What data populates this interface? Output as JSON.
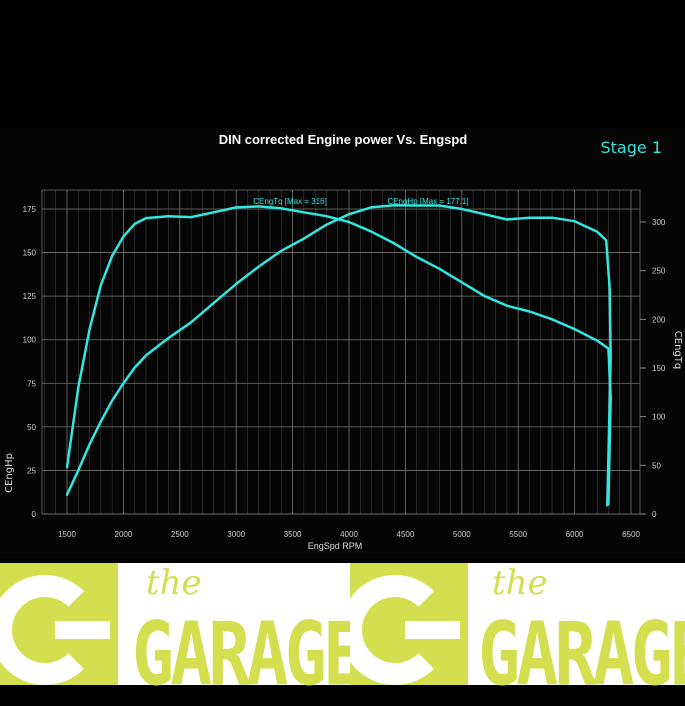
{
  "chart_data": {
    "type": "line",
    "title": "DIN corrected Engine power Vs. Engspd",
    "badge": "Stage 1",
    "xlabel": "EngSpd RPM",
    "ylabel_left": "CEngHp",
    "ylabel_right": "CEngTq",
    "xlim": [
      1250,
      6550
    ],
    "ylim_left": [
      0,
      185
    ],
    "ylim_right": [
      0,
      317
    ],
    "x_ticks": [
      1500,
      2000,
      2500,
      3000,
      3500,
      4000,
      4500,
      5000,
      5500,
      6000,
      6500
    ],
    "y_ticks_left": [
      0,
      25,
      50,
      75,
      100,
      125,
      150,
      175
    ],
    "y_ticks_right": [
      0,
      50,
      100,
      150,
      200,
      250,
      300
    ],
    "grid": true,
    "line_color": "#33e6e0",
    "series": [
      {
        "name": "CEngTq",
        "axis": "right",
        "label": "CEngTq [Max = 316]",
        "points": [
          [
            1500,
            48
          ],
          [
            1600,
            130
          ],
          [
            1700,
            190
          ],
          [
            1800,
            235
          ],
          [
            1900,
            265
          ],
          [
            2000,
            285
          ],
          [
            2100,
            298
          ],
          [
            2200,
            304
          ],
          [
            2400,
            306
          ],
          [
            2600,
            305
          ],
          [
            2800,
            310
          ],
          [
            3000,
            315
          ],
          [
            3200,
            316
          ],
          [
            3400,
            314
          ],
          [
            3600,
            310
          ],
          [
            3800,
            306
          ],
          [
            4000,
            300
          ],
          [
            4200,
            290
          ],
          [
            4400,
            278
          ],
          [
            4600,
            264
          ],
          [
            4800,
            252
          ],
          [
            5000,
            238
          ],
          [
            5200,
            224
          ],
          [
            5400,
            214
          ],
          [
            5600,
            208
          ],
          [
            5800,
            200
          ],
          [
            6000,
            190
          ],
          [
            6200,
            178
          ],
          [
            6300,
            170
          ],
          [
            6320,
            120
          ],
          [
            6300,
            10
          ]
        ]
      },
      {
        "name": "CEngHp",
        "axis": "left",
        "label": "CEngHp [Max = 177.1]",
        "points": [
          [
            1500,
            11
          ],
          [
            1600,
            25
          ],
          [
            1700,
            40
          ],
          [
            1800,
            53
          ],
          [
            1900,
            65
          ],
          [
            2000,
            75
          ],
          [
            2100,
            84
          ],
          [
            2200,
            91
          ],
          [
            2400,
            101
          ],
          [
            2600,
            110
          ],
          [
            2800,
            121
          ],
          [
            3000,
            132
          ],
          [
            3200,
            142
          ],
          [
            3400,
            151
          ],
          [
            3600,
            158
          ],
          [
            3800,
            166
          ],
          [
            4000,
            172
          ],
          [
            4200,
            176
          ],
          [
            4400,
            177.1
          ],
          [
            4600,
            177
          ],
          [
            4800,
            177
          ],
          [
            5000,
            175
          ],
          [
            5200,
            172
          ],
          [
            5400,
            169
          ],
          [
            5600,
            170
          ],
          [
            5800,
            170
          ],
          [
            6000,
            168
          ],
          [
            6200,
            162
          ],
          [
            6280,
            157
          ],
          [
            6310,
            130
          ],
          [
            6320,
            90
          ],
          [
            6290,
            5
          ]
        ]
      }
    ]
  },
  "banner": {
    "logos": [
      {
        "small": "the",
        "large": "GARAGE"
      },
      {
        "small": "the",
        "large": "GARAGE"
      }
    ],
    "brand_color": "#d3df4e"
  }
}
